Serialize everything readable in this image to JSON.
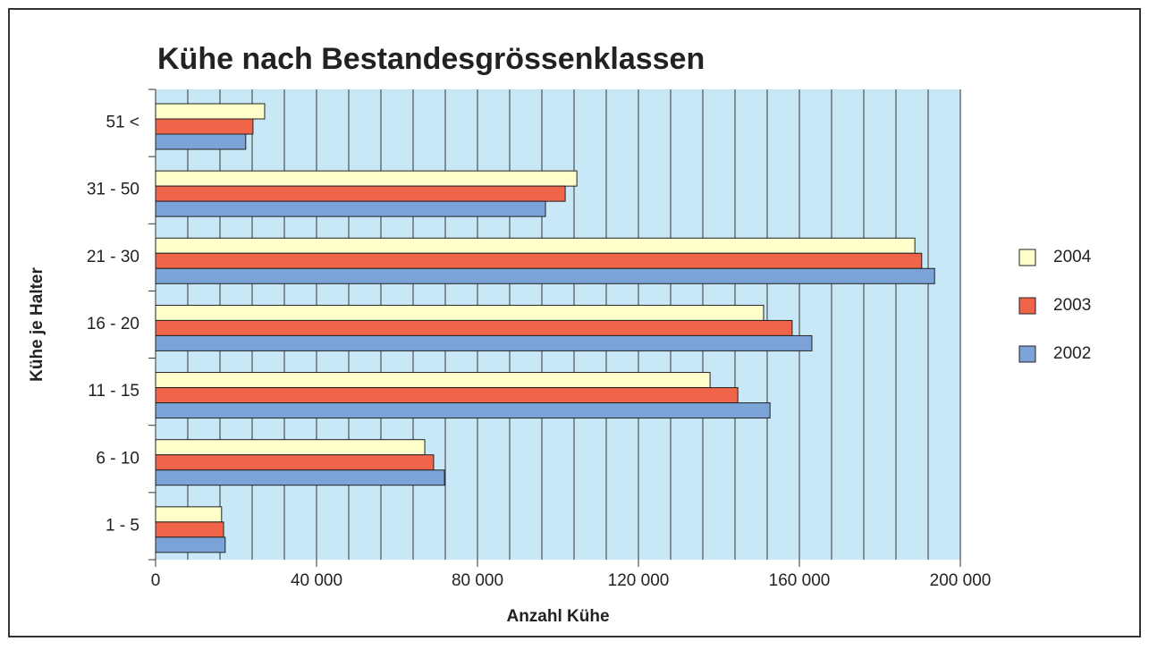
{
  "chart_data": {
    "type": "bar",
    "orientation": "horizontal",
    "title": "Kühe nach Bestandesgrössenklassen",
    "xlabel": "Anzahl Kühe",
    "ylabel": "Kühe je Halter",
    "categories": [
      "51 <",
      "31 - 50",
      "21 - 30",
      "16 - 20",
      "11 - 15",
      "6 - 10",
      "1 - 5"
    ],
    "series": [
      {
        "name": "2004",
        "color": "#ffffcc",
        "values": [
          27100,
          104700,
          188700,
          151100,
          137800,
          66900,
          16400
        ]
      },
      {
        "name": "2003",
        "color": "#f0654a",
        "values": [
          24200,
          101800,
          190400,
          158200,
          144700,
          69100,
          16900
        ]
      },
      {
        "name": "2002",
        "color": "#7ba3d8",
        "values": [
          22400,
          96900,
          193600,
          163100,
          152700,
          71800,
          17300
        ]
      }
    ],
    "xlim": [
      0,
      200000
    ],
    "xticks": [
      0,
      {
        "value": 40000,
        "label": "40 000"
      },
      {
        "value": 80000,
        "label": "80 000"
      },
      {
        "value": 120000,
        "label": "120 000"
      },
      {
        "value": 160000,
        "label": "160 000"
      },
      {
        "value": 200000,
        "label": "200 000"
      }
    ],
    "xgrid": [
      0,
      8000,
      16000,
      24000,
      32000,
      40000,
      48000,
      56000,
      64000,
      72000,
      80000,
      88000,
      96000,
      104000,
      112000,
      120000,
      128000,
      136000,
      144000,
      152000,
      160000,
      168000,
      176000,
      184000,
      192000,
      200000
    ],
    "plot_background": "#c8e8f8",
    "legend": "right"
  }
}
